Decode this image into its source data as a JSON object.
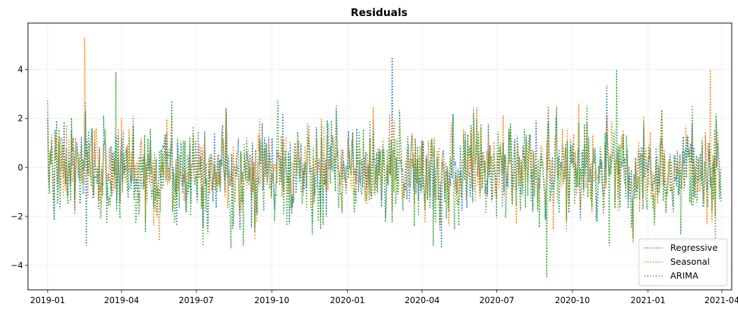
{
  "chart_data": {
    "type": "line",
    "title": "Residuals",
    "xlabel": "",
    "ylabel": "",
    "x_range": [
      "2018-12-08",
      "2021-04-13"
    ],
    "ylim": [
      -5.0,
      5.9
    ],
    "grid": true,
    "legend_position": "bottom-right",
    "x_ticks": [
      "2019-01",
      "2019-04",
      "2019-07",
      "2019-10",
      "2020-01",
      "2020-04",
      "2020-07",
      "2020-10",
      "2021-01",
      "2021-04"
    ],
    "y_ticks": [
      -4,
      -2,
      0,
      2,
      4
    ],
    "line_style": "dotted",
    "x_start": "2019-01-01",
    "x_end": "2021-03-31",
    "points_per_series": 820,
    "series": [
      {
        "name": "Regressive",
        "color": "#1f77b4",
        "amplitude": 1.0
      },
      {
        "name": "Seasonal",
        "color": "#ff7f0e",
        "amplitude": 1.05
      },
      {
        "name": "ARIMA",
        "color": "#2ca02c",
        "amplitude": 1.25
      }
    ],
    "notable_points": [
      {
        "series": "Seasonal",
        "date": "2019-02-15",
        "y": 5.3
      },
      {
        "series": "Regressive",
        "date": "2020-02-25",
        "y": 4.5
      },
      {
        "series": "ARIMA",
        "date": "2019-03-25",
        "y": 3.9
      },
      {
        "series": "ARIMA",
        "date": "2020-08-31",
        "y": -4.5
      },
      {
        "series": "ARIMA",
        "date": "2020-11-24",
        "y": 4.0
      },
      {
        "series": "Seasonal",
        "date": "2021-03-18",
        "y": 4.0
      },
      {
        "series": "Regressive",
        "date": "2020-04-25",
        "y": -3.3
      },
      {
        "series": "ARIMA",
        "date": "2019-08-12",
        "y": -3.3
      },
      {
        "series": "Regressive",
        "date": "2019-02-17",
        "y": -3.2
      },
      {
        "series": "Seasonal",
        "date": "2019-05-17",
        "y": -3.0
      }
    ]
  }
}
